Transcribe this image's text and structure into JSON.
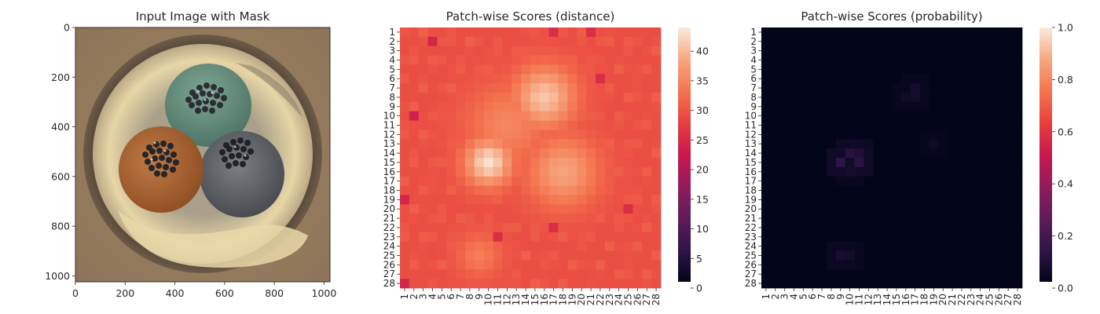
{
  "panels": {
    "image": {
      "title": "Input Image with Mask",
      "x_ticks": [
        "0",
        "200",
        "400",
        "600",
        "800",
        "1000"
      ],
      "y_ticks": [
        "0",
        "200",
        "400",
        "600",
        "800",
        "1000"
      ]
    },
    "distance": {
      "title": "Patch-wise Scores (distance)"
    },
    "probability": {
      "title": "Patch-wise Scores (probability)"
    }
  },
  "chart_data": [
    {
      "type": "image",
      "title": "Input Image with Mask",
      "xlim": [
        0,
        1024
      ],
      "ylim": [
        1024,
        0
      ],
      "x_ticks": [
        0,
        200,
        400,
        600,
        800,
        1000
      ],
      "y_ticks": [
        0,
        200,
        400,
        600,
        800,
        1000
      ]
    },
    {
      "type": "heatmap",
      "title": "Patch-wise Scores (distance)",
      "rows": 28,
      "cols": 28,
      "row_labels": [
        "1",
        "2",
        "3",
        "4",
        "5",
        "6",
        "7",
        "8",
        "9",
        "10",
        "11",
        "12",
        "13",
        "14",
        "15",
        "16",
        "17",
        "18",
        "19",
        "20",
        "21",
        "22",
        "23",
        "24",
        "25",
        "26",
        "27",
        "28"
      ],
      "col_labels": [
        "1",
        "2",
        "3",
        "4",
        "5",
        "6",
        "7",
        "8",
        "9",
        "10",
        "11",
        "12",
        "13",
        "14",
        "15",
        "16",
        "17",
        "18",
        "19",
        "20",
        "21",
        "22",
        "23",
        "24",
        "25",
        "26",
        "27",
        "28"
      ],
      "colormap": "rocket",
      "colorbar_range": [
        0,
        44
      ],
      "colorbar_ticks": [
        "0",
        "5",
        "10",
        "15",
        "20",
        "25",
        "30",
        "35",
        "40"
      ],
      "baseline": 29,
      "hotspots": [
        {
          "row": 8,
          "col": 16,
          "peak": 41,
          "spread": 2.3
        },
        {
          "row": 15,
          "col": 10,
          "peak": 43,
          "spread": 1.8
        },
        {
          "row": 16,
          "col": 18,
          "peak": 38,
          "spread": 2.6
        },
        {
          "row": 11,
          "col": 12,
          "peak": 35,
          "spread": 3.0
        },
        {
          "row": 25,
          "col": 9,
          "peak": 34,
          "spread": 1.6
        }
      ],
      "low_spots": [
        {
          "row": 2,
          "col": 4,
          "value": 24
        },
        {
          "row": 10,
          "col": 2,
          "value": 23
        },
        {
          "row": 19,
          "col": 1,
          "value": 24
        },
        {
          "row": 23,
          "col": 11,
          "value": 25
        },
        {
          "row": 1,
          "col": 17,
          "value": 25
        },
        {
          "row": 1,
          "col": 21,
          "value": 25
        },
        {
          "row": 28,
          "col": 1,
          "value": 24
        },
        {
          "row": 6,
          "col": 22,
          "value": 25
        },
        {
          "row": 22,
          "col": 17,
          "value": 25
        },
        {
          "row": 20,
          "col": 25,
          "value": 25
        }
      ]
    },
    {
      "type": "heatmap",
      "title": "Patch-wise Scores (probability)",
      "rows": 28,
      "cols": 28,
      "row_labels": [
        "1",
        "2",
        "3",
        "4",
        "5",
        "6",
        "7",
        "8",
        "9",
        "10",
        "11",
        "12",
        "13",
        "14",
        "15",
        "16",
        "17",
        "18",
        "19",
        "20",
        "21",
        "22",
        "23",
        "24",
        "25",
        "26",
        "27",
        "28"
      ],
      "col_labels": [
        "1",
        "2",
        "3",
        "4",
        "5",
        "6",
        "7",
        "8",
        "9",
        "10",
        "11",
        "12",
        "13",
        "14",
        "15",
        "16",
        "17",
        "18",
        "19",
        "20",
        "21",
        "22",
        "23",
        "24",
        "25",
        "26",
        "27",
        "28"
      ],
      "colormap": "rocket",
      "colorbar_range": [
        0,
        1
      ],
      "colorbar_ticks": [
        "0.0",
        "0.2",
        "0.4",
        "0.6",
        "0.8",
        "1.0"
      ],
      "baseline": 0.0,
      "hotspots": [
        {
          "row": 14,
          "col": 10,
          "peak": 0.1
        },
        {
          "row": 15,
          "col": 9,
          "peak": 0.12
        },
        {
          "row": 15,
          "col": 11,
          "peak": 0.11
        },
        {
          "row": 14,
          "col": 11,
          "peak": 0.08
        },
        {
          "row": 7,
          "col": 17,
          "peak": 0.05
        },
        {
          "row": 8,
          "col": 16,
          "peak": 0.04
        },
        {
          "row": 8,
          "col": 17,
          "peak": 0.05
        },
        {
          "row": 25,
          "col": 9,
          "peak": 0.06
        },
        {
          "row": 25,
          "col": 10,
          "peak": 0.05
        },
        {
          "row": 16,
          "col": 10,
          "peak": 0.05
        },
        {
          "row": 13,
          "col": 19,
          "peak": 0.03
        }
      ]
    }
  ]
}
